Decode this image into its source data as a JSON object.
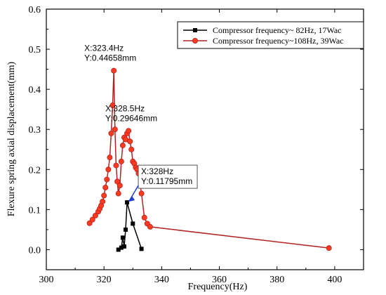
{
  "chart_data": {
    "type": "line",
    "xlabel": "Frequency(Hz)",
    "ylabel": "Flexure spring axial displacement(mm)",
    "xlim": [
      300,
      410
    ],
    "ylim": [
      -0.05,
      0.6
    ],
    "xticks": [
      300,
      320,
      340,
      360,
      380,
      400
    ],
    "yticks": [
      0.0,
      0.1,
      0.2,
      0.3,
      0.4,
      0.5,
      0.6
    ],
    "xtick_labels": [
      "300",
      "320",
      "340",
      "360",
      "380",
      "400"
    ],
    "ytick_labels": [
      "0.0",
      "0.1",
      "0.2",
      "0.3",
      "0.4",
      "0.5",
      "0.6"
    ],
    "grid": false,
    "legend_position": "top-right",
    "series": [
      {
        "name": "Compressor frequency~ 82Hz, 17Wac",
        "color": "#000000",
        "marker": "square",
        "x": [
          325,
          326,
          326.5,
          327,
          327.5,
          328,
          330,
          333
        ],
        "y": [
          0.0,
          0.005,
          0.03,
          0.008,
          0.05,
          0.11795,
          0.065,
          0.002
        ]
      },
      {
        "name": "Compressor frequency~108Hz, 39Wac",
        "color": "#b22222",
        "marker": "circle",
        "x": [
          315,
          316,
          317,
          318,
          318.5,
          319,
          319.5,
          320,
          320.5,
          321,
          321.5,
          322,
          322.5,
          323,
          323.4,
          323.8,
          324.2,
          324.6,
          325,
          325.5,
          326,
          326.5,
          327,
          327.5,
          328,
          328.5,
          329,
          329.5,
          330,
          330.5,
          331,
          331.5,
          332,
          333,
          334,
          335,
          336,
          398
        ],
        "y": [
          0.066,
          0.075,
          0.085,
          0.095,
          0.102,
          0.11,
          0.12,
          0.135,
          0.155,
          0.175,
          0.2,
          0.23,
          0.29,
          0.36,
          0.44658,
          0.3,
          0.21,
          0.17,
          0.14,
          0.16,
          0.22,
          0.26,
          0.28,
          0.275,
          0.29,
          0.29646,
          0.27,
          0.25,
          0.22,
          0.215,
          0.205,
          0.2,
          0.19,
          0.14,
          0.08,
          0.065,
          0.057,
          0.004
        ]
      }
    ],
    "annotations": [
      {
        "line1": "X:323.4Hz",
        "line2": "Y:0.44658mm",
        "x": 323.4,
        "y": 0.44658,
        "boxed": false
      },
      {
        "line1": "X:328.5Hz",
        "line2": "Y:0.29646mm",
        "x": 328.5,
        "y": 0.29646,
        "boxed": false
      },
      {
        "line1": "X:328Hz",
        "line2": "Y:0.11795mm",
        "x": 328,
        "y": 0.11795,
        "boxed": true
      }
    ]
  }
}
